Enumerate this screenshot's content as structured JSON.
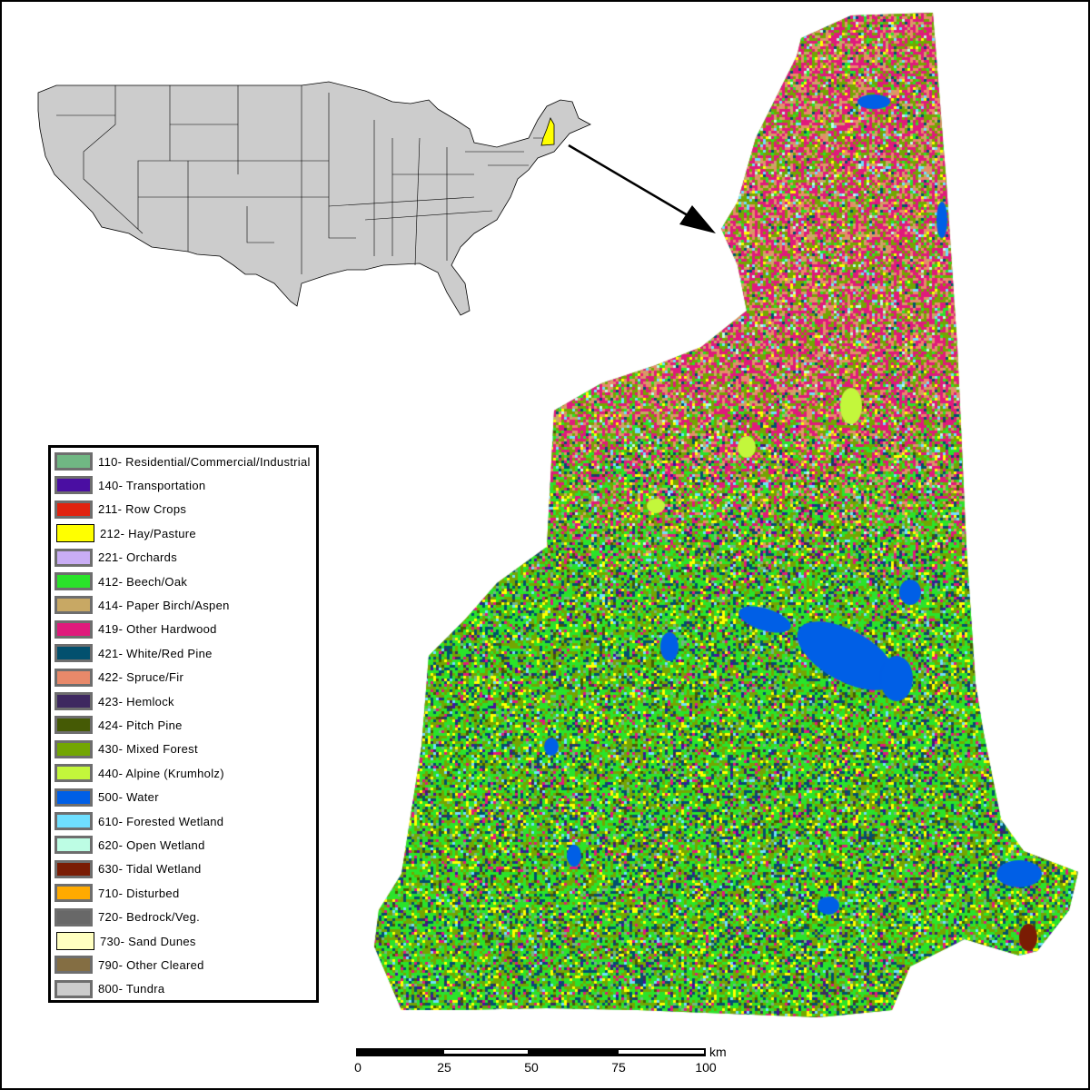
{
  "legend": {
    "items": [
      {
        "label": "110- Residential/Commercial/Industrial",
        "color": "#70b783"
      },
      {
        "label": "140- Transportation",
        "color": "#4a0ea2"
      },
      {
        "label": "211- Row Crops",
        "color": "#e1230f"
      },
      {
        "label": "212- Hay/Pasture",
        "color": "#ffff00"
      },
      {
        "label": "221- Orchards",
        "color": "#c9adf5"
      },
      {
        "label": "412- Beech/Oak",
        "color": "#2ae32a"
      },
      {
        "label": "414- Paper Birch/Aspen",
        "color": "#c8a864"
      },
      {
        "label": "419- Other Hardwood",
        "color": "#e01a7c"
      },
      {
        "label": "421- White/Red Pine",
        "color": "#02506e"
      },
      {
        "label": "422- Spruce/Fir",
        "color": "#e8896a"
      },
      {
        "label": "423- Hemlock",
        "color": "#3e2860"
      },
      {
        "label": "424- Pitch Pine",
        "color": "#455a05"
      },
      {
        "label": "430- Mixed Forest",
        "color": "#73a602"
      },
      {
        "label": "440- Alpine (Krumholz)",
        "color": "#c3f73b"
      },
      {
        "label": "500- Water",
        "color": "#005fe6"
      },
      {
        "label": "610- Forested Wetland",
        "color": "#6fdfff"
      },
      {
        "label": "620- Open Wetland",
        "color": "#bdfde4"
      },
      {
        "label": "630- Tidal Wetland",
        "color": "#7a1c04"
      },
      {
        "label": "710- Disturbed",
        "color": "#ffaa00"
      },
      {
        "label": "720- Bedrock/Veg.",
        "color": "#686868"
      },
      {
        "label": "730- Sand Dunes",
        "color": "#ffffc0"
      },
      {
        "label": "790- Other Cleared",
        "color": "#846e43"
      },
      {
        "label": "800- Tundra",
        "color": "#cccccc"
      }
    ]
  },
  "inset": {
    "highlight_state": "New Hampshire",
    "highlight_color": "#ffff00",
    "land_color": "#cccccc"
  },
  "scalebar": {
    "ticks": [
      "0",
      "25",
      "50",
      "75",
      "100"
    ],
    "unit": "km"
  }
}
